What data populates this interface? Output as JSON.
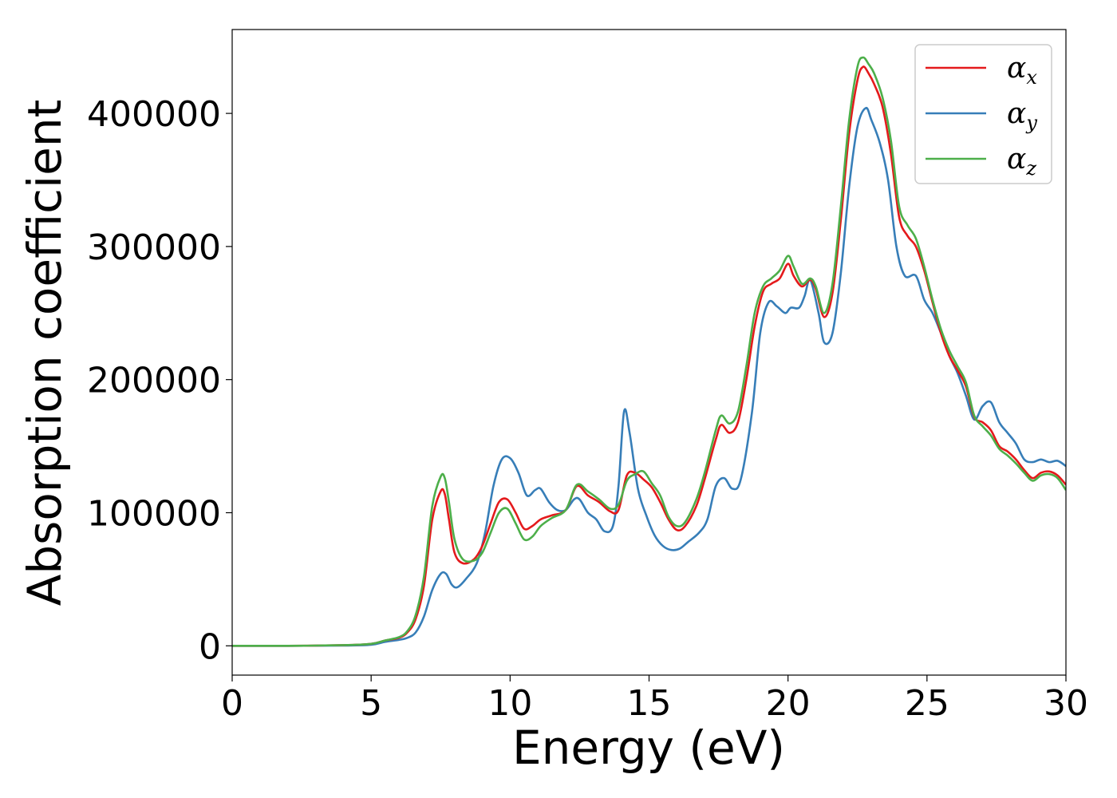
{
  "chart_data": {
    "type": "line",
    "xlabel": "Energy (eV)",
    "ylabel": "Absorption coefficient",
    "xlim": [
      0,
      30
    ],
    "ylim": [
      -22000,
      463000
    ],
    "xticks": [
      "0",
      "5",
      "10",
      "15",
      "20",
      "25",
      "30"
    ],
    "yticks": [
      "0",
      "100000",
      "200000",
      "300000",
      "400000"
    ],
    "grid": false,
    "legend_position": "top-right",
    "series": [
      {
        "name": "α_x",
        "label_main": "α",
        "label_sub": "x",
        "color": "#e41a1c",
        "x": [
          0,
          2,
          4,
          5,
          5.5,
          6,
          6.3,
          6.6,
          6.9,
          7.2,
          7.5,
          7.65,
          7.8,
          8.0,
          8.3,
          8.7,
          9.0,
          9.3,
          9.6,
          9.9,
          10.2,
          10.5,
          10.8,
          11.1,
          11.5,
          12.0,
          12.4,
          12.8,
          13.2,
          13.6,
          13.9,
          14.2,
          14.5,
          14.8,
          15.1,
          15.4,
          15.7,
          16.0,
          16.3,
          16.7,
          17.0,
          17.4,
          17.6,
          17.9,
          18.2,
          18.5,
          18.8,
          19.1,
          19.4,
          19.7,
          20.0,
          20.2,
          20.5,
          20.8,
          21.0,
          21.3,
          21.6,
          21.9,
          22.2,
          22.5,
          22.7,
          22.9,
          23.1,
          23.4,
          23.7,
          24.0,
          24.3,
          24.6,
          24.9,
          25.2,
          25.5,
          25.8,
          26.1,
          26.4,
          26.7,
          27.0,
          27.3,
          27.6,
          27.9,
          28.2,
          28.5,
          28.8,
          29.1,
          29.4,
          29.7,
          30.0
        ],
        "y": [
          0,
          0,
          500,
          1500,
          4000,
          6000,
          10000,
          20000,
          45000,
          95000,
          116000,
          114000,
          95000,
          70000,
          62000,
          65000,
          75000,
          92000,
          108000,
          110000,
          100000,
          88000,
          90000,
          95000,
          98000,
          102000,
          120000,
          113000,
          108000,
          101000,
          102000,
          128000,
          130000,
          125000,
          119000,
          108000,
          95000,
          87000,
          90000,
          105000,
          125000,
          155000,
          166000,
          160000,
          168000,
          200000,
          240000,
          266000,
          272000,
          276000,
          287000,
          278000,
          270000,
          275000,
          268000,
          247000,
          265000,
          320000,
          385000,
          425000,
          435000,
          430000,
          422000,
          405000,
          370000,
          322000,
          308000,
          300000,
          282000,
          258000,
          235000,
          218000,
          207000,
          195000,
          172000,
          168000,
          162000,
          150000,
          146000,
          140000,
          132000,
          126000,
          130000,
          131000,
          128000,
          121000
        ]
      },
      {
        "name": "α_y",
        "label_main": "α",
        "label_sub": "y",
        "color": "#377eb8",
        "x": [
          0,
          2,
          4,
          5,
          5.5,
          6,
          6.3,
          6.6,
          6.9,
          7.2,
          7.5,
          7.7,
          7.9,
          8.1,
          8.4,
          8.8,
          9.1,
          9.4,
          9.7,
          10.0,
          10.3,
          10.6,
          10.9,
          11.1,
          11.4,
          11.7,
          12.0,
          12.3,
          12.5,
          12.8,
          13.1,
          13.4,
          13.7,
          13.9,
          14.1,
          14.3,
          14.6,
          14.9,
          15.2,
          15.5,
          15.8,
          16.1,
          16.4,
          16.8,
          17.1,
          17.4,
          17.7,
          18.0,
          18.3,
          18.7,
          19.0,
          19.3,
          19.6,
          19.9,
          20.1,
          20.4,
          20.6,
          20.8,
          21.1,
          21.3,
          21.6,
          21.9,
          22.2,
          22.5,
          22.8,
          23.0,
          23.3,
          23.6,
          23.9,
          24.2,
          24.6,
          24.9,
          25.2,
          25.5,
          25.8,
          26.1,
          26.4,
          26.7,
          27.0,
          27.3,
          27.6,
          27.9,
          28.2,
          28.5,
          28.8,
          29.1,
          29.4,
          29.7,
          30.0
        ],
        "y": [
          0,
          0,
          200,
          800,
          3000,
          4500,
          6000,
          10000,
          22000,
          42000,
          54000,
          54000,
          46000,
          44000,
          50000,
          62000,
          85000,
          120000,
          140000,
          141000,
          130000,
          113000,
          117000,
          118000,
          108000,
          102000,
          102000,
          110000,
          110000,
          100000,
          95000,
          86000,
          90000,
          120000,
          176000,
          160000,
          118000,
          98000,
          83000,
          75000,
          72000,
          73000,
          78000,
          85000,
          95000,
          120000,
          126000,
          118000,
          125000,
          175000,
          235000,
          258000,
          255000,
          250000,
          254000,
          254000,
          263000,
          275000,
          250000,
          228000,
          235000,
          280000,
          345000,
          390000,
          404000,
          395000,
          378000,
          350000,
          300000,
          278000,
          278000,
          260000,
          250000,
          235000,
          218000,
          205000,
          188000,
          170000,
          180000,
          183000,
          168000,
          160000,
          152000,
          140000,
          138000,
          140000,
          138000,
          139000,
          135000
        ]
      },
      {
        "name": "α_z",
        "label_main": "α",
        "label_sub": "z",
        "color": "#4daf4a",
        "x": [
          0,
          2,
          4,
          5,
          5.5,
          6,
          6.3,
          6.6,
          6.9,
          7.2,
          7.5,
          7.65,
          7.8,
          8.0,
          8.3,
          8.7,
          9.0,
          9.3,
          9.6,
          9.9,
          10.2,
          10.5,
          10.8,
          11.1,
          11.5,
          12.0,
          12.4,
          12.8,
          13.2,
          13.6,
          13.9,
          14.2,
          14.5,
          14.8,
          15.1,
          15.4,
          15.7,
          16.0,
          16.3,
          16.7,
          17.0,
          17.4,
          17.6,
          17.9,
          18.2,
          18.5,
          18.8,
          19.1,
          19.4,
          19.7,
          20.0,
          20.2,
          20.5,
          20.8,
          21.0,
          21.3,
          21.6,
          21.9,
          22.2,
          22.5,
          22.7,
          22.9,
          23.1,
          23.4,
          23.7,
          24.0,
          24.3,
          24.6,
          24.9,
          25.2,
          25.5,
          25.8,
          26.1,
          26.4,
          26.7,
          27.0,
          27.3,
          27.6,
          27.9,
          28.2,
          28.5,
          28.8,
          29.1,
          29.4,
          29.7,
          30.0
        ],
        "y": [
          0,
          0,
          500,
          1500,
          4000,
          6500,
          11000,
          23000,
          52000,
          105000,
          127000,
          126000,
          108000,
          80000,
          65000,
          64000,
          70000,
          85000,
          100000,
          103000,
          92000,
          80000,
          82000,
          90000,
          96000,
          102000,
          121000,
          116000,
          110000,
          103000,
          106000,
          124000,
          129000,
          131000,
          122000,
          113000,
          97000,
          90000,
          93000,
          110000,
          130000,
          162000,
          173000,
          167000,
          176000,
          210000,
          250000,
          270000,
          276000,
          282000,
          293000,
          285000,
          272000,
          276000,
          270000,
          250000,
          272000,
          330000,
          395000,
          435000,
          442000,
          437000,
          430000,
          412000,
          380000,
          330000,
          316000,
          306000,
          285000,
          260000,
          238000,
          222000,
          210000,
          198000,
          173000,
          165000,
          158000,
          148000,
          143000,
          137000,
          130000,
          124000,
          128000,
          129000,
          126000,
          117000
        ]
      }
    ]
  }
}
